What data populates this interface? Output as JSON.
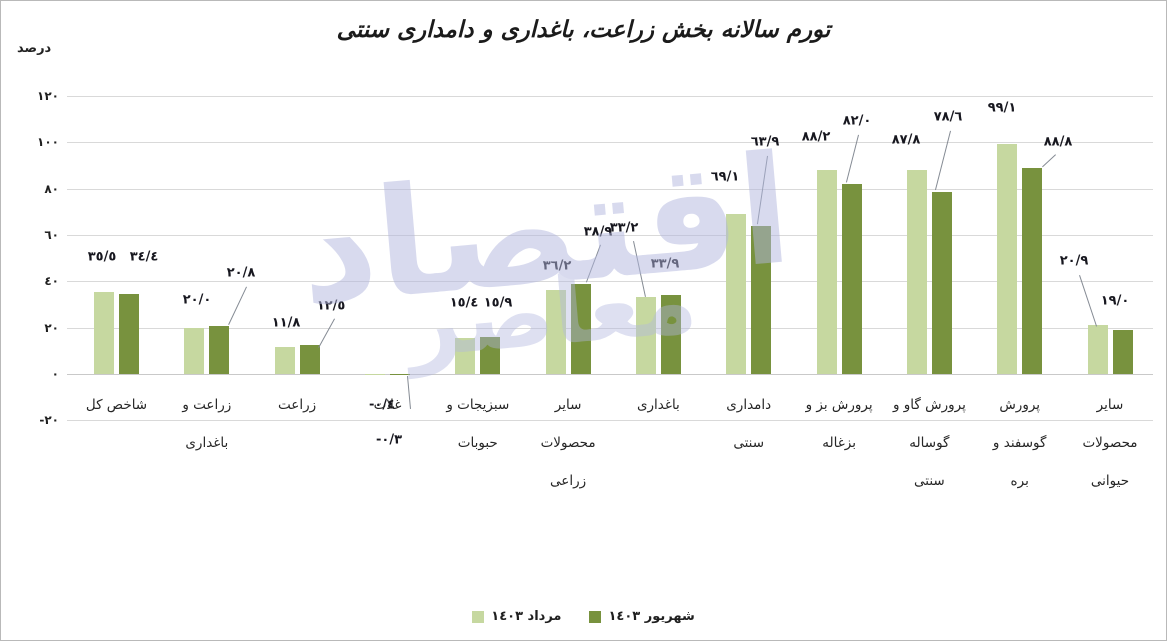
{
  "title": "تورم سالانه بخش زراعت، باغداری و دامداری سنتی",
  "axis_unit_label": "درصد",
  "watermark": {
    "word1": "اقتصاد",
    "word2": "معاصر"
  },
  "legend": {
    "items": [
      {
        "label": "مرداد ١٤٠٣",
        "color": "#c6d8a0"
      },
      {
        "label": "شهریور ١٤٠٣",
        "color": "#78923e"
      }
    ]
  },
  "colors": {
    "bar_light": "#c6d8a0",
    "bar_dark": "#78923e",
    "gridline": "#d9d9d9",
    "text": "#1f1f1f",
    "watermark": "#b2b7de"
  },
  "chart_data": {
    "type": "bar",
    "title": "تورم سالانه بخش زراعت، باغداری و دامداری سنتی",
    "xlabel": "",
    "ylabel": "درصد",
    "ylim": [
      -20,
      120
    ],
    "grid": true,
    "legend_position": "bottom-center",
    "ytick_values": [
      120,
      100,
      80,
      60,
      40,
      20,
      0,
      -20
    ],
    "ytick_labels": [
      "١٢٠",
      "١٠٠",
      "٨٠",
      "٦٠",
      "٤٠",
      "٢٠",
      "٠",
      "-٢٠"
    ],
    "categories": [
      "شاخص کل",
      "زراعت و باغداری",
      "زراعت",
      "غلات",
      "سبزیجات و حبوبات",
      "سایر محصولات زراعی",
      "باغداری",
      "دامداری سنتی",
      "پرورش بز و بزغاله",
      "پرورش گاو و گوساله سنتی",
      "پرورش گوسفند و بره",
      "سایر محصولات حیوانی"
    ],
    "category_label_lines": [
      [
        "شاخص کل"
      ],
      [
        "زراعت و",
        "باغداری"
      ],
      [
        "زراعت"
      ],
      [
        "غلات"
      ],
      [
        "سبزیجات و",
        "حبوبات"
      ],
      [
        "سایر",
        "محصولات",
        "زراعی"
      ],
      [
        "باغداری"
      ],
      [
        "دامداری",
        "سنتی"
      ],
      [
        "پرورش بز و",
        "بزغاله"
      ],
      [
        "پرورش گاو و",
        "گوساله",
        "سنتی"
      ],
      [
        "پرورش",
        "گوسفند و",
        "بره"
      ],
      [
        "سایر",
        "محصولات",
        "حیوانی"
      ]
    ],
    "series": [
      {
        "name": "مرداد ١٤٠٣",
        "color": "#c6d8a0",
        "values": [
          35.5,
          20.0,
          11.8,
          -0.4,
          15.4,
          36.2,
          33.2,
          69.1,
          88.2,
          87.8,
          99.1,
          20.9
        ],
        "value_labels": [
          "٣٥/٥",
          "٢٠/٠",
          "١١/٨",
          "-٠/٤",
          "١٥/٤",
          "٣٦/٢",
          "٣٣/٢",
          "٦٩/١",
          "٨٨/٢",
          "٨٧/٨",
          "٩٩/١",
          "٢٠/٩"
        ]
      },
      {
        "name": "شهریور ١٤٠٣",
        "color": "#78923e",
        "values": [
          34.4,
          20.8,
          12.5,
          -0.3,
          15.9,
          38.9,
          33.9,
          63.9,
          82.0,
          78.6,
          88.8,
          19.0
        ],
        "value_labels": [
          "٣٤/٤",
          "٢٠/٨",
          "١٢/٥",
          "-٠/٣",
          "١٥/٩",
          "٣٨/٩",
          "٣٣/٩",
          "٦٣/٩",
          "٨٢/٠",
          "٧٨/٦",
          "٨٨/٨",
          "١٩/٠"
        ]
      }
    ]
  }
}
